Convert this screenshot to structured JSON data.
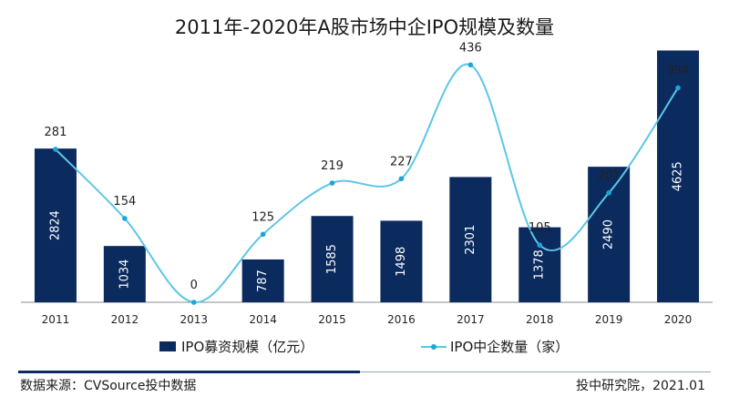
{
  "chart_data": {
    "type": "bar",
    "title": "2011年-2020年A股市场中企IPO规模及数量",
    "categories": [
      "2011",
      "2012",
      "2013",
      "2014",
      "2015",
      "2016",
      "2017",
      "2018",
      "2019",
      "2020"
    ],
    "series": [
      {
        "name": "IPO募资规模（亿元）",
        "type": "bar",
        "values": [
          2824,
          1034,
          0,
          787,
          1585,
          1498,
          2301,
          1378,
          2490,
          4625
        ],
        "labels": [
          "2824",
          "1034",
          "",
          "787",
          "1585",
          "1498",
          "2301",
          "1378",
          "2490",
          "4625"
        ]
      },
      {
        "name": "IPO中企数量（家）",
        "type": "line",
        "values": [
          281,
          154,
          0,
          125,
          219,
          227,
          436,
          105,
          201,
          394
        ]
      }
    ],
    "bar_ylim": [
      0,
      4800
    ],
    "line_ylim": [
      0,
      480
    ],
    "colors": {
      "bar": "#0b2a5e",
      "line": "#5cc6e6",
      "marker": "#1ba6d6"
    },
    "legend_position": "bottom"
  },
  "footer": {
    "source": "数据来源：CVSource投中数据",
    "publisher": "投中研究院，2021.01"
  }
}
